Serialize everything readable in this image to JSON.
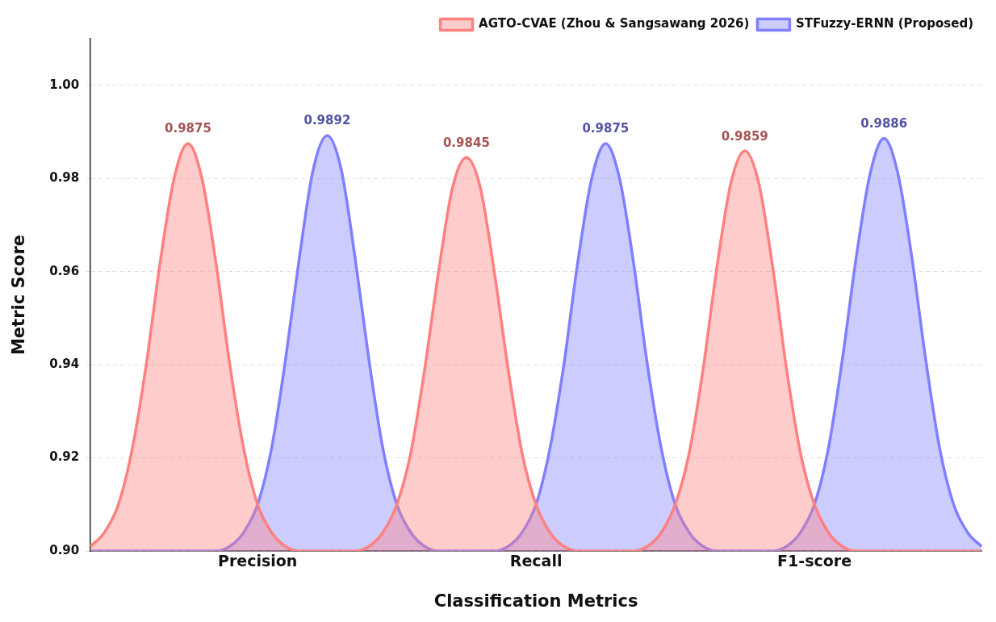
{
  "chart_data": {
    "type": "area",
    "xlabel": "Classification Metrics",
    "ylabel": "Metric Score",
    "categories": [
      null,
      null,
      null,
      null,
      null,
      null,
      null,
      null,
      null,
      null,
      null,
      null,
      "Precision",
      null,
      null,
      null,
      null,
      null,
      null,
      null,
      null,
      null,
      null,
      null,
      null,
      null,
      null,
      null,
      null,
      null,
      null,
      null,
      "Recall",
      null,
      null,
      null,
      null,
      null,
      null,
      null,
      null,
      null,
      null,
      null,
      null,
      null,
      null,
      null,
      null,
      null,
      null,
      null,
      "F1-score",
      null,
      null,
      null,
      null,
      null,
      null,
      null,
      null,
      null,
      null,
      null,
      null
    ],
    "ylim": [
      0.9,
      1.01
    ],
    "yticks": [
      {
        "value": 0.9,
        "label": "0.90"
      },
      {
        "value": 0.92,
        "label": "0.92"
      },
      {
        "value": 0.94,
        "label": "0.94"
      },
      {
        "value": 0.96,
        "label": "0.96"
      },
      {
        "value": 0.98,
        "label": "0.98"
      },
      {
        "value": 1.0,
        "label": "1.00"
      }
    ],
    "grid": "y",
    "legend": "top right",
    "marker": "none",
    "line_style": "solid",
    "series": [
      {
        "name": "AGTO-CVAE (Zhou & Sangsawang 2026)",
        "color": "#ff8080",
        "values": [
          0.901,
          0.904,
          0.91,
          0.922,
          0.94,
          0.962,
          0.98,
          0.9875,
          0.98,
          0.962,
          0.94,
          0.922,
          0.91,
          0.904,
          0.901,
          0.9,
          0.9,
          0.9,
          0.9,
          0.9,
          0.901,
          0.904,
          0.91,
          0.921,
          0.939,
          0.96,
          0.978,
          0.9845,
          0.978,
          0.96,
          0.939,
          0.921,
          0.91,
          0.904,
          0.901,
          0.9,
          0.9,
          0.9,
          0.9,
          0.9,
          0.901,
          0.904,
          0.91,
          0.921,
          0.939,
          0.961,
          0.979,
          0.9859,
          0.979,
          0.961,
          0.939,
          0.921,
          0.91,
          0.904,
          0.901,
          0.9,
          0.9,
          0.9,
          0.9,
          0.9,
          0.9,
          0.9,
          0.9,
          0.9,
          0.9
        ],
        "value_labels": [
          null,
          null,
          null,
          null,
          null,
          null,
          null,
          "0.9875",
          null,
          null,
          null,
          null,
          null,
          null,
          null,
          null,
          null,
          null,
          null,
          null,
          null,
          null,
          null,
          null,
          null,
          null,
          null,
          "0.9845",
          null,
          null,
          null,
          null,
          null,
          null,
          null,
          null,
          null,
          null,
          null,
          null,
          null,
          null,
          null,
          null,
          null,
          null,
          null,
          "0.9859",
          null,
          null,
          null,
          null,
          null,
          null,
          null,
          null,
          null,
          null,
          null,
          null,
          null,
          null,
          null,
          null,
          null
        ]
      },
      {
        "name": "STFuzzy-ERNN (Proposed)",
        "color": "#8080ff",
        "values": [
          0.9,
          0.9,
          0.9,
          0.9,
          0.9,
          0.9,
          0.9,
          0.9,
          0.9,
          0.9,
          0.901,
          0.904,
          0.91,
          0.922,
          0.941,
          0.963,
          0.982,
          0.9892,
          0.982,
          0.963,
          0.941,
          0.922,
          0.91,
          0.904,
          0.901,
          0.9,
          0.9,
          0.9,
          0.9,
          0.9,
          0.901,
          0.904,
          0.91,
          0.922,
          0.94,
          0.962,
          0.98,
          0.9875,
          0.98,
          0.962,
          0.94,
          0.922,
          0.91,
          0.904,
          0.901,
          0.9,
          0.9,
          0.9,
          0.9,
          0.9,
          0.901,
          0.904,
          0.91,
          0.922,
          0.941,
          0.963,
          0.981,
          0.9886,
          0.981,
          0.963,
          0.941,
          0.922,
          0.91,
          0.904,
          0.901
        ],
        "value_labels": [
          null,
          null,
          null,
          null,
          null,
          null,
          null,
          null,
          null,
          null,
          null,
          null,
          null,
          null,
          null,
          null,
          null,
          "0.9892",
          null,
          null,
          null,
          null,
          null,
          null,
          null,
          null,
          null,
          null,
          null,
          null,
          null,
          null,
          null,
          null,
          null,
          null,
          null,
          "0.9875",
          null,
          null,
          null,
          null,
          null,
          null,
          null,
          null,
          null,
          null,
          null,
          null,
          null,
          null,
          null,
          null,
          null,
          null,
          null,
          "0.9886",
          null,
          null,
          null,
          null,
          null,
          null,
          null
        ]
      }
    ]
  }
}
